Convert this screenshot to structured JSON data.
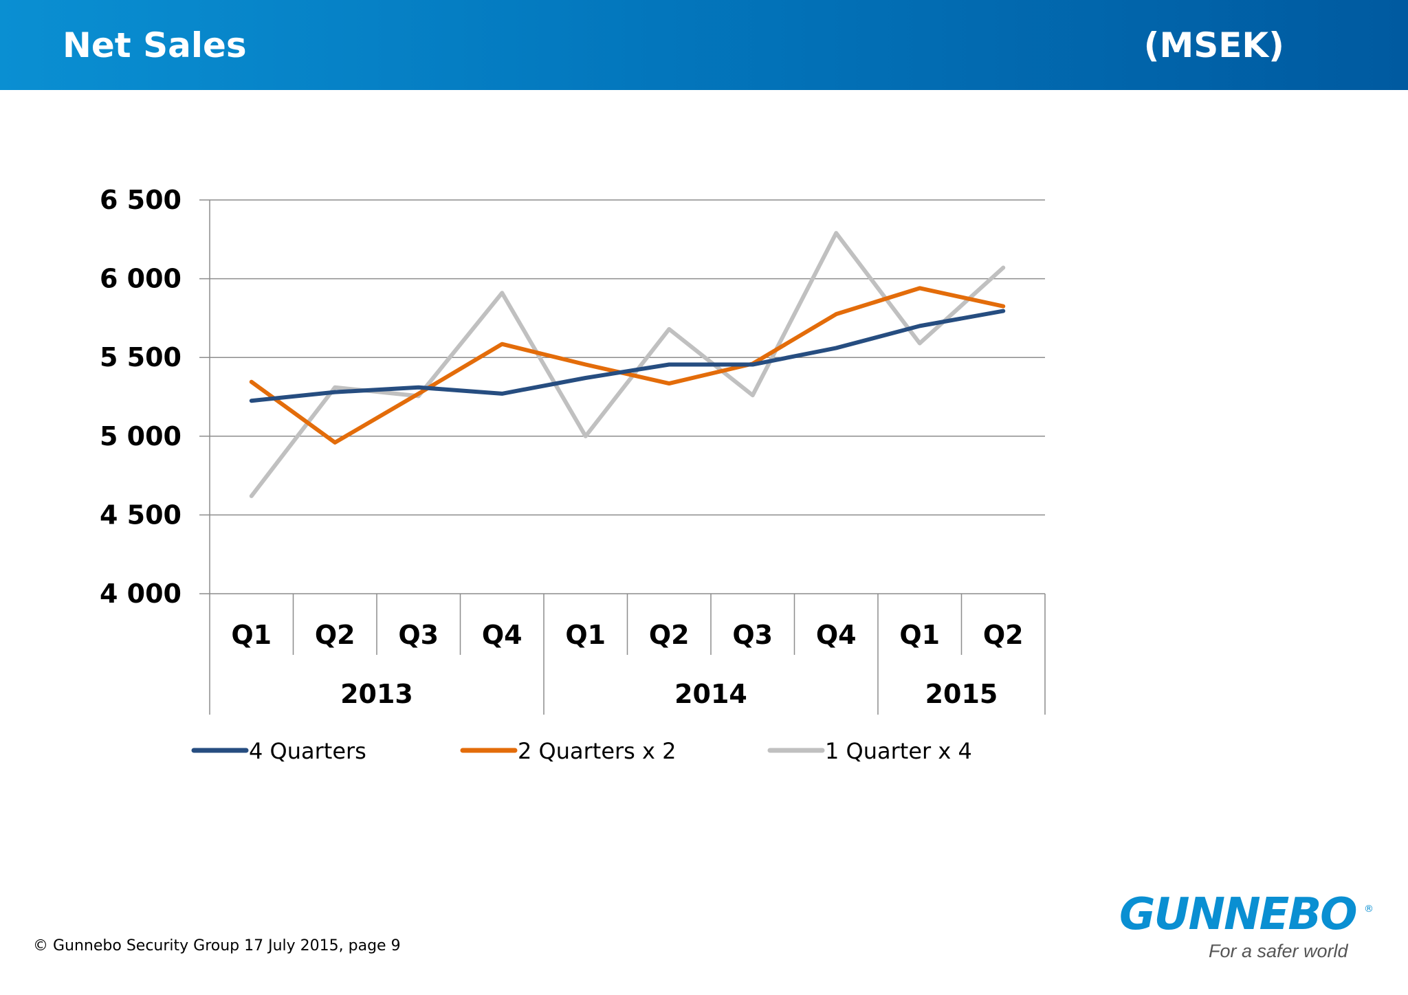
{
  "header": {
    "title": "Net Sales",
    "unit": "(MSEK)"
  },
  "chart_data": {
    "type": "line",
    "title": "",
    "xlabel": "",
    "ylabel": "",
    "ylim": [
      4000,
      6500
    ],
    "y_ticks": [
      4000,
      4500,
      5000,
      5500,
      6000,
      6500
    ],
    "y_tick_labels": [
      "4 000",
      "4 500",
      "5 000",
      "5 500",
      "6 000",
      "6 500"
    ],
    "grid": true,
    "legend_position": "bottom",
    "categories": [
      "Q1",
      "Q2",
      "Q3",
      "Q4",
      "Q1",
      "Q2",
      "Q3",
      "Q4",
      "Q1",
      "Q2"
    ],
    "groups": [
      {
        "label": "2013",
        "count": 4
      },
      {
        "label": "2014",
        "count": 4
      },
      {
        "label": "2015",
        "count": 2
      }
    ],
    "series": [
      {
        "name": "4 Quarters",
        "color": "#264d80",
        "values": [
          5225,
          5280,
          5310,
          5270,
          5370,
          5455,
          5455,
          5560,
          5700,
          5795
        ]
      },
      {
        "name": "2 Quarters x 2",
        "color": "#e36c0a",
        "values": [
          5345,
          4960,
          5270,
          5585,
          5455,
          5335,
          5460,
          5775,
          5940,
          5825
        ]
      },
      {
        "name": "1 Quarter x 4",
        "color": "#c0c0c0",
        "values": [
          4620,
          5310,
          5255,
          5910,
          5000,
          5680,
          5260,
          6290,
          5590,
          6070
        ]
      }
    ]
  },
  "footer": {
    "text": "© Gunnebo Security Group 17 July 2015, page 9"
  },
  "logo": {
    "name": "GUNNEBO",
    "registered": "®",
    "tagline": "For a safer world"
  }
}
